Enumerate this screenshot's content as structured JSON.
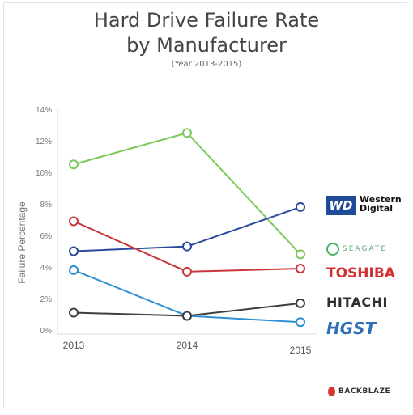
{
  "header": {
    "title_line1": "Hard Drive Failure Rate",
    "title_line2": "by Manufacturer",
    "subtitle": "(Year 2013-2015)"
  },
  "chart_data": {
    "type": "line",
    "title": "Hard Drive Failure Rate by Manufacturer",
    "subtitle": "(Year 2013-2015)",
    "xlabel": "",
    "ylabel": "Failure Percentage",
    "x": [
      "2013",
      "2014",
      "2015"
    ],
    "yticks": [
      "0%",
      "2%",
      "4%",
      "6%",
      "8%",
      "10%",
      "12%",
      "14%"
    ],
    "ylim": [
      0,
      14
    ],
    "grid": false,
    "series": [
      {
        "brand": "Seagate",
        "color": "#7cc95a",
        "values": [
          10.5,
          12.5,
          4.8
        ]
      },
      {
        "brand": "Western Digital",
        "color": "#2a4b9b",
        "values": [
          5.0,
          5.3,
          7.8
        ]
      },
      {
        "brand": "Toshiba",
        "color": "#c9373a",
        "values": [
          6.9,
          3.7,
          3.9
        ]
      },
      {
        "brand": "HGST",
        "color": "#2f8fd0",
        "values": [
          3.8,
          0.9,
          0.5
        ]
      },
      {
        "brand": "Hitachi",
        "color": "#3e3e3e",
        "values": [
          1.1,
          0.9,
          1.7
        ]
      }
    ]
  },
  "legend_logos": {
    "wd_mark": "WD",
    "wd_name_line1": "Western",
    "wd_name_line2": "Digital",
    "seagate": "SEAGATE",
    "toshiba": "TOSHIBA",
    "hitachi": "HITACHI",
    "hgst": "HGST"
  },
  "footer": {
    "brand": "BACKBLAZE"
  }
}
